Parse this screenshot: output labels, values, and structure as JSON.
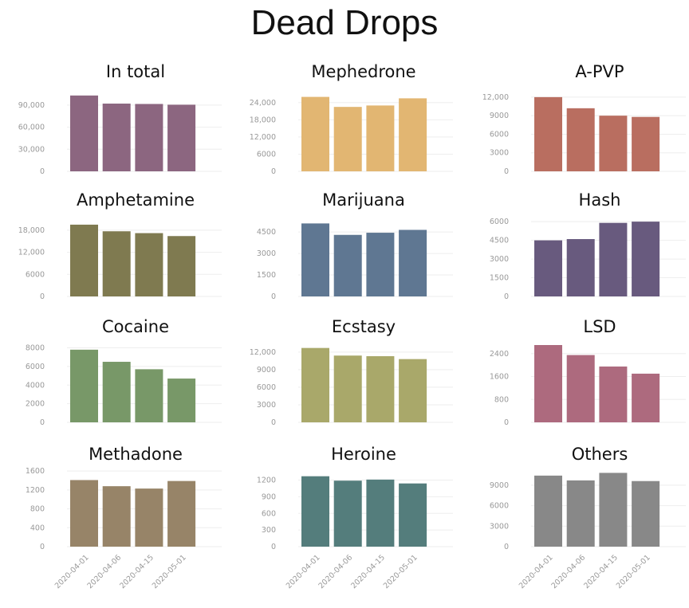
{
  "title": "Dead Drops",
  "chart_data": [
    {
      "type": "bar",
      "title": "In total",
      "categories": [
        "2020-04-01",
        "2020-04-06",
        "2020-04-15",
        "2020-05-01"
      ],
      "values": [
        103000,
        92000,
        91500,
        90500
      ],
      "ylim": [
        0,
        105000
      ],
      "yticks": [
        0,
        30000,
        60000,
        90000
      ],
      "yticklabels": [
        "0",
        "30,000",
        "60,000",
        "90,000"
      ],
      "color": "#8c6680"
    },
    {
      "type": "bar",
      "title": "Mephedrone",
      "categories": [
        "2020-04-01",
        "2020-04-06",
        "2020-04-15",
        "2020-05-01"
      ],
      "values": [
        26000,
        22500,
        23000,
        25500
      ],
      "ylim": [
        0,
        27000
      ],
      "yticks": [
        0,
        6000,
        12000,
        18000,
        24000
      ],
      "yticklabels": [
        "0",
        "6000",
        "12,000",
        "18,000",
        "24,000"
      ],
      "color": "#e2b672"
    },
    {
      "type": "bar",
      "title": "A-PVP",
      "categories": [
        "2020-04-01",
        "2020-04-06",
        "2020-04-15",
        "2020-05-01"
      ],
      "values": [
        12000,
        10200,
        9000,
        8800
      ],
      "ylim": [
        0,
        12500
      ],
      "yticks": [
        0,
        3000,
        6000,
        9000,
        12000
      ],
      "yticklabels": [
        "0",
        "3000",
        "6000",
        "9000",
        "12,000"
      ],
      "color": "#b96e60"
    },
    {
      "type": "bar",
      "title": "Amphetamine",
      "categories": [
        "2020-04-01",
        "2020-04-06",
        "2020-04-15",
        "2020-05-01"
      ],
      "values": [
        19500,
        17700,
        17200,
        16400
      ],
      "ylim": [
        0,
        21000
      ],
      "yticks": [
        0,
        6000,
        12000,
        18000
      ],
      "yticklabels": [
        "0",
        "6000",
        "12,000",
        "18,000"
      ],
      "color": "#7f7a50"
    },
    {
      "type": "bar",
      "title": "Marijuana",
      "categories": [
        "2020-04-01",
        "2020-04-06",
        "2020-04-15",
        "2020-05-01"
      ],
      "values": [
        5100,
        4300,
        4450,
        4650
      ],
      "ylim": [
        0,
        5400
      ],
      "yticks": [
        0,
        1500,
        3000,
        4500
      ],
      "yticklabels": [
        "0",
        "1500",
        "3000",
        "4500"
      ],
      "color": "#5f7792"
    },
    {
      "type": "bar",
      "title": "Hash",
      "categories": [
        "2020-04-01",
        "2020-04-06",
        "2020-04-15",
        "2020-05-01"
      ],
      "values": [
        4500,
        4600,
        5900,
        6000
      ],
      "ylim": [
        0,
        6200
      ],
      "yticks": [
        0,
        1500,
        3000,
        4500,
        6000
      ],
      "yticklabels": [
        "0",
        "1500",
        "3000",
        "4500",
        "6000"
      ],
      "color": "#685a7e"
    },
    {
      "type": "bar",
      "title": "Cocaine",
      "categories": [
        "2020-04-01",
        "2020-04-06",
        "2020-04-15",
        "2020-05-01"
      ],
      "values": [
        7800,
        6500,
        5700,
        4700
      ],
      "ylim": [
        0,
        8300
      ],
      "yticks": [
        0,
        2000,
        4000,
        6000,
        8000
      ],
      "yticklabels": [
        "0",
        "2000",
        "4000",
        "6000",
        "8000"
      ],
      "color": "#789868"
    },
    {
      "type": "bar",
      "title": "Ecstasy",
      "categories": [
        "2020-04-01",
        "2020-04-06",
        "2020-04-15",
        "2020-05-01"
      ],
      "values": [
        12700,
        11400,
        11300,
        10800
      ],
      "ylim": [
        0,
        13200
      ],
      "yticks": [
        0,
        3000,
        6000,
        9000,
        12000
      ],
      "yticklabels": [
        "0",
        "3000",
        "6000",
        "9000",
        "12,000"
      ],
      "color": "#a9a86a"
    },
    {
      "type": "bar",
      "title": "LSD",
      "categories": [
        "2020-04-01",
        "2020-04-06",
        "2020-04-15",
        "2020-05-01"
      ],
      "values": [
        2700,
        2350,
        1950,
        1700
      ],
      "ylim": [
        0,
        2700
      ],
      "yticks": [
        0,
        800,
        1600,
        2400
      ],
      "yticklabels": [
        "0",
        "800",
        "1600",
        "2400"
      ],
      "color": "#ad6a7e"
    },
    {
      "type": "bar",
      "title": "Methadone",
      "categories": [
        "2020-04-01",
        "2020-04-06",
        "2020-04-15",
        "2020-05-01"
      ],
      "values": [
        1410,
        1280,
        1230,
        1390
      ],
      "ylim": [
        0,
        1620
      ],
      "yticks": [
        0,
        400,
        800,
        1200,
        1600
      ],
      "yticklabels": [
        "0",
        "400",
        "800",
        "1200",
        "1600"
      ],
      "color": "#978468"
    },
    {
      "type": "bar",
      "title": "Heroine",
      "categories": [
        "2020-04-01",
        "2020-04-06",
        "2020-04-15",
        "2020-05-01"
      ],
      "values": [
        1270,
        1190,
        1210,
        1140
      ],
      "ylim": [
        0,
        1380
      ],
      "yticks": [
        0,
        300,
        600,
        900,
        1200
      ],
      "yticklabels": [
        "0",
        "300",
        "600",
        "900",
        "1200"
      ],
      "color": "#547d7c"
    },
    {
      "type": "bar",
      "title": "Others",
      "categories": [
        "2020-04-01",
        "2020-04-06",
        "2020-04-15",
        "2020-05-01"
      ],
      "values": [
        10400,
        9700,
        10800,
        9600
      ],
      "ylim": [
        0,
        11200
      ],
      "yticks": [
        0,
        3000,
        6000,
        9000
      ],
      "yticklabels": [
        "0",
        "3000",
        "6000",
        "9000"
      ],
      "color": "#888888"
    }
  ]
}
